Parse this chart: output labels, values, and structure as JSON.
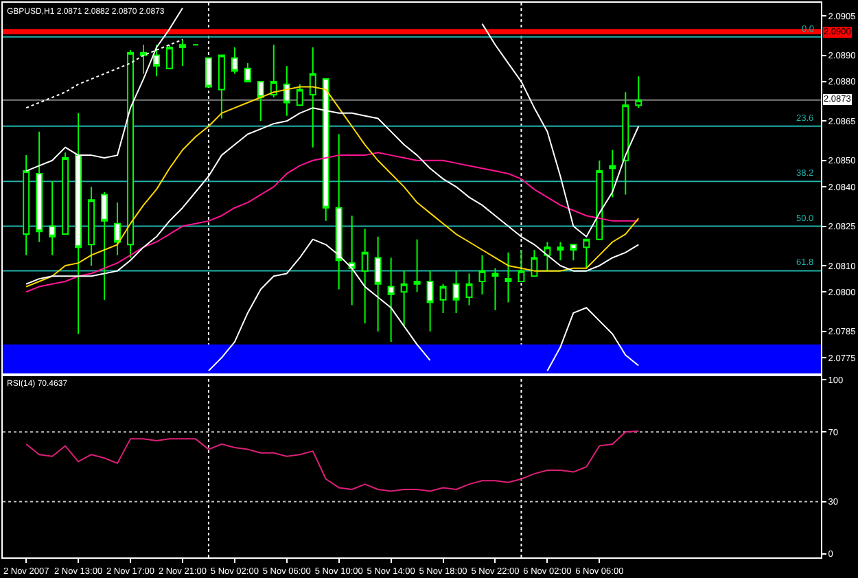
{
  "chart_data": [
    {
      "type": "candlestick",
      "title": "GBPUSD,H1 2.0871 2.0882 2.0870 2.0873",
      "categories": [
        null,
        null,
        null,
        null,
        null,
        null,
        null,
        null,
        null,
        null,
        null,
        null,
        null,
        null,
        null,
        null,
        null,
        null,
        null,
        null,
        null,
        null,
        null,
        null,
        null,
        null,
        null,
        null,
        null,
        null,
        null,
        null,
        null,
        null,
        null,
        null,
        null,
        null,
        null,
        null,
        null,
        null,
        null,
        null,
        null,
        null,
        null,
        null
      ],
      "ohlc": [
        [
          2.0822,
          2.0852,
          2.0814,
          2.0846
        ],
        [
          2.0845,
          2.0861,
          2.0819,
          2.0823
        ],
        [
          2.0825,
          2.0842,
          2.0814,
          2.0821
        ],
        [
          2.0822,
          2.0853,
          2.0822,
          2.0851
        ],
        [
          2.0852,
          2.0868,
          2.0784,
          2.0817
        ],
        [
          2.0818,
          2.084,
          2.081,
          2.0835
        ],
        [
          2.0837,
          2.0838,
          2.0797,
          2.0827
        ],
        [
          2.0826,
          2.0834,
          2.0814,
          2.0819
        ],
        [
          2.0818,
          2.0892,
          2.0813,
          2.0891
        ],
        [
          2.089,
          2.0894,
          2.0883,
          2.0891
        ],
        [
          2.089,
          2.0894,
          2.0882,
          2.0886
        ],
        [
          2.0885,
          2.0894,
          2.0885,
          2.0893
        ],
        [
          2.0894,
          2.0896,
          2.0886,
          2.0893
        ],
        [
          2.0894,
          2.0894,
          2.0894,
          2.0894
        ],
        [
          2.0889,
          2.0889,
          2.0878,
          2.0878
        ],
        [
          2.0877,
          2.089,
          2.0866,
          2.089
        ],
        [
          2.0889,
          2.0893,
          2.0883,
          2.0884
        ],
        [
          2.0885,
          2.0887,
          2.088,
          2.088
        ],
        [
          2.088,
          2.088,
          2.0865,
          2.0874
        ],
        [
          2.0875,
          2.0894,
          2.0874,
          2.088
        ],
        [
          2.0879,
          2.0886,
          2.0867,
          2.0872
        ],
        [
          2.0871,
          2.0879,
          2.0871,
          2.0877
        ],
        [
          2.0875,
          2.0893,
          2.0855,
          2.0883
        ],
        [
          2.0881,
          2.0881,
          2.0827,
          2.0832
        ],
        [
          2.0832,
          2.086,
          2.0801,
          2.0812
        ],
        [
          2.0811,
          2.0829,
          2.0795,
          2.0809
        ],
        [
          2.0808,
          2.0824,
          2.0788,
          2.0815
        ],
        [
          2.0813,
          2.0821,
          2.0785,
          2.0803
        ],
        [
          2.0802,
          2.0813,
          2.0781,
          2.0799
        ],
        [
          2.08,
          2.0808,
          2.0787,
          2.0803
        ],
        [
          2.0804,
          2.082,
          2.08,
          2.0803
        ],
        [
          2.0804,
          2.0808,
          2.0785,
          2.0796
        ],
        [
          2.0797,
          2.0803,
          2.0792,
          2.0802
        ],
        [
          2.0803,
          2.0808,
          2.0792,
          2.0797
        ],
        [
          2.0798,
          2.0807,
          2.0795,
          2.0803
        ],
        [
          2.0804,
          2.0814,
          2.0799,
          2.0808
        ],
        [
          2.0807,
          2.0809,
          2.0793,
          2.0806
        ],
        [
          2.0804,
          2.0815,
          2.0796,
          2.0805
        ],
        [
          2.0804,
          2.0816,
          2.0804,
          2.0808
        ],
        [
          2.0806,
          2.0816,
          2.0806,
          2.0813
        ],
        [
          2.0814,
          2.0819,
          2.0808,
          2.0817
        ],
        [
          2.0816,
          2.0819,
          2.0812,
          2.0817
        ],
        [
          2.0818,
          2.0818,
          2.0812,
          2.0816
        ],
        [
          2.0817,
          2.082,
          2.0809,
          2.082
        ],
        [
          2.082,
          2.085,
          2.082,
          2.0846
        ],
        [
          2.0847,
          2.0854,
          2.0836,
          2.0848
        ],
        [
          2.085,
          2.0876,
          2.0837,
          2.0871
        ],
        [
          2.0871,
          2.0882,
          2.087,
          2.0873
        ]
      ],
      "series": [
        {
          "type": "line",
          "color": "#ffffff",
          "line_style": "dotted",
          "values": [
            2.087,
            2.0872,
            2.0874,
            2.0876,
            2.0879,
            2.0881,
            2.0883,
            2.0885,
            2.0887,
            2.089,
            2.0892,
            2.0894,
            2.0896,
            null,
            null,
            null,
            null,
            null,
            null,
            null,
            null,
            null,
            null,
            null,
            null,
            null,
            null,
            null,
            null,
            null,
            null,
            null,
            null,
            null,
            null,
            null,
            null,
            null,
            null,
            null,
            null,
            null,
            null,
            null,
            null,
            null,
            null,
            null
          ]
        },
        {
          "type": "line",
          "color": "#ff1493",
          "values": [
            2.08,
            2.0802,
            2.0803,
            2.0804,
            2.0806,
            2.0807,
            2.0809,
            2.0811,
            2.0814,
            2.0817,
            2.0819,
            2.0822,
            2.0825,
            2.0826,
            2.0827,
            2.0829,
            2.0832,
            2.0834,
            2.0837,
            2.084,
            2.0845,
            2.0848,
            2.085,
            2.0851,
            2.0852,
            2.0852,
            2.0852,
            2.0853,
            2.0852,
            2.0851,
            2.085,
            2.085,
            2.085,
            2.0849,
            2.0848,
            2.0847,
            2.0846,
            2.0845,
            2.0843,
            2.0839,
            2.0836,
            2.0833,
            2.0831,
            2.0829,
            2.0828,
            2.0827,
            2.0827,
            2.0827
          ]
        },
        {
          "type": "line",
          "color": "#ffd700",
          "values": [
            2.0802,
            2.0804,
            2.0806,
            2.081,
            2.0811,
            2.0814,
            2.0816,
            2.0818,
            2.0826,
            2.0833,
            2.0839,
            2.0847,
            2.0854,
            2.0859,
            2.0863,
            2.0868,
            2.087,
            2.0872,
            2.0874,
            2.0876,
            2.0877,
            2.0878,
            2.0878,
            2.0877,
            2.087,
            2.0863,
            2.0856,
            2.085,
            2.0845,
            2.084,
            2.0834,
            2.083,
            2.0826,
            2.0822,
            2.0819,
            2.0816,
            2.0813,
            2.081,
            2.0809,
            2.0808,
            2.0808,
            2.0808,
            2.0809,
            2.0809,
            2.0814,
            2.0819,
            2.0822,
            2.0828
          ]
        },
        {
          "type": "line",
          "color": "#ffffff",
          "values": [
            2.0803,
            2.0805,
            2.0806,
            2.0806,
            2.0806,
            2.0806,
            2.0807,
            2.0808,
            2.0812,
            2.0817,
            2.0821,
            2.0827,
            2.0832,
            2.0838,
            2.0844,
            2.0852,
            2.0856,
            2.086,
            2.0862,
            2.0864,
            2.0865,
            2.0868,
            2.087,
            2.0869,
            2.0868,
            2.0868,
            2.0867,
            2.0866,
            2.0861,
            2.0856,
            2.0852,
            2.0847,
            2.0843,
            2.084,
            2.0836,
            2.0833,
            2.0829,
            2.0825,
            2.0821,
            2.0818,
            2.0814,
            2.081,
            2.0808,
            2.0808,
            2.081,
            2.0813,
            2.0815,
            2.0818
          ]
        },
        {
          "type": "line",
          "color": "#ffffff",
          "values": [
            2.0846,
            2.0848,
            2.085,
            2.0855,
            2.0852,
            2.0852,
            2.0851,
            2.0852,
            2.087,
            2.0881,
            2.0893,
            2.09,
            2.0908,
            null,
            null,
            null,
            null,
            null,
            null,
            null,
            null,
            null,
            null,
            null,
            null,
            null,
            null,
            null,
            null,
            null,
            null,
            null,
            null,
            null,
            null,
            2.0902,
            2.0894,
            2.0887,
            2.088,
            2.087,
            2.0861,
            2.0844,
            2.0825,
            2.0821,
            2.083,
            2.0838,
            2.0852,
            2.0863
          ]
        },
        {
          "type": "line",
          "color": "#ffffff",
          "values": [
            null,
            null,
            null,
            null,
            null,
            null,
            null,
            null,
            null,
            null,
            null,
            null,
            null,
            null,
            2.077,
            2.0775,
            2.0781,
            2.0792,
            2.0801,
            2.0806,
            2.0807,
            2.0813,
            2.082,
            2.0818,
            2.0814,
            2.0809,
            2.0802,
            2.0798,
            2.0794,
            2.0787,
            2.078,
            2.0774,
            null,
            null,
            null,
            null,
            null,
            null,
            null,
            null,
            2.077,
            2.0779,
            2.0792,
            2.0794,
            2.0789,
            2.0784,
            2.0776,
            2.0772
          ]
        }
      ],
      "ylim": [
        2.0769,
        2.091
      ],
      "yticks": [
        2.0775,
        2.0785,
        {
          "value": 2.08,
          "label": "2.0800"
        },
        {
          "value": 2.081,
          "label": "2.0810"
        },
        2.0825,
        {
          "value": 2.084,
          "label": "2.0840"
        },
        {
          "value": 2.085,
          "label": "2.0850"
        },
        2.0865,
        {
          "value": 2.088,
          "label": "2.0880"
        },
        {
          "value": 2.089,
          "label": "2.0890"
        },
        2.0905
      ],
      "y2lim": [
        88.9,
        -9.0
      ],
      "tick_labels": "y",
      "bands": [
        {
          "axis": "y",
          "from": 2.0769,
          "to": 2.078,
          "color": "#0000ff"
        },
        {
          "axis": "y",
          "from": 2.0898,
          "to": 2.09,
          "color": "#ff0000",
          "label": "2.0900"
        }
      ],
      "ref_lines": [
        {
          "axis": "y2",
          "value": 0.0,
          "label": "0.0",
          "color": "#20b2aa"
        },
        {
          "axis": "y2",
          "value": 23.6,
          "label": "23.6",
          "color": "#20b2aa"
        },
        {
          "axis": "y2",
          "value": 38.2,
          "label": "38.2",
          "color": "#20b2aa"
        },
        {
          "axis": "y2",
          "value": 50.0,
          "label": "50.0",
          "color": "#20b2aa"
        },
        {
          "axis": "y2",
          "value": 61.8,
          "label": "61.8",
          "color": "#20b2aa"
        },
        {
          "axis": "y",
          "value": 2.0873,
          "label": "2.0873",
          "color": "#808080"
        }
      ]
    },
    {
      "type": "line",
      "title": "RSI(14) 70.4637",
      "categories": [
        "2 Nov 2007",
        null,
        null,
        null,
        "2 Nov 13:00",
        null,
        null,
        null,
        "2 Nov 17:00",
        null,
        null,
        null,
        "2 Nov 21:00",
        null,
        null,
        null,
        "5 Nov 02:00",
        null,
        null,
        null,
        "5 Nov 06:00",
        null,
        null,
        null,
        "5 Nov 10:00",
        null,
        null,
        null,
        "5 Nov 14:00",
        null,
        null,
        null,
        "5 Nov 18:00",
        null,
        null,
        null,
        "5 Nov 22:00",
        null,
        null,
        null,
        "6 Nov 02:00",
        null,
        null,
        null,
        "6 Nov 06:00",
        null,
        null,
        null
      ],
      "series": [
        {
          "color": "#dc1f78",
          "values": [
            63,
            57,
            56,
            62,
            53,
            57,
            55,
            52,
            66,
            66,
            65,
            66,
            66,
            66,
            60,
            63,
            61,
            60,
            58,
            58,
            56,
            57,
            59,
            43,
            38,
            37,
            40,
            37,
            36,
            37,
            37,
            36,
            38,
            37,
            40,
            42,
            42,
            41,
            43,
            46,
            48,
            48,
            47,
            50,
            62,
            63,
            70,
            70.5
          ]
        }
      ],
      "ylim": [
        -2,
        102
      ],
      "yticks": [
        0,
        30,
        70,
        100
      ],
      "ref_lines": [
        {
          "axis": "y",
          "value": 70,
          "color": "#c0c0c0",
          "line_style": "dotted"
        },
        {
          "axis": "y",
          "value": 30,
          "color": "#c0c0c0",
          "line_style": "dotted"
        }
      ]
    }
  ]
}
